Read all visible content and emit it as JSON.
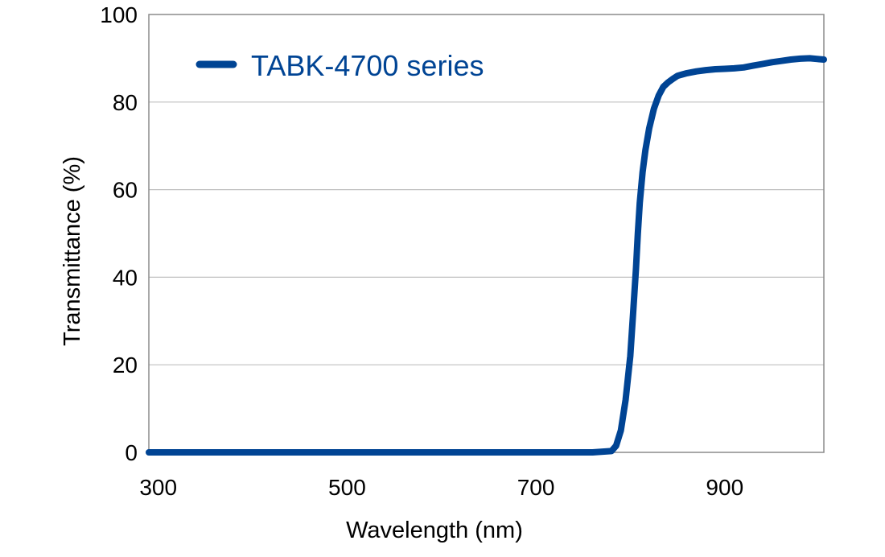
{
  "chart_data": {
    "type": "line",
    "title": "",
    "xlabel": "Wavelength (nm)",
    "ylabel": "Transmittance (%)",
    "xlim": [
      290,
      1005
    ],
    "ylim": [
      0,
      100
    ],
    "x_ticks": [
      300,
      500,
      700,
      900
    ],
    "y_ticks": [
      0,
      20,
      40,
      60,
      80,
      100
    ],
    "grid": "horizontal",
    "legend_position": "top-left",
    "series": [
      {
        "name": "TABK-4700 series",
        "color": "#004494",
        "x": [
          290,
          300,
          400,
          500,
          600,
          700,
          760,
          780,
          785,
          790,
          795,
          800,
          803,
          806,
          808,
          810,
          813,
          816,
          820,
          825,
          830,
          835,
          840,
          845,
          850,
          855,
          860,
          870,
          880,
          890,
          900,
          910,
          920,
          930,
          940,
          950,
          960,
          970,
          980,
          990,
          1000,
          1005
        ],
        "values": [
          0,
          0,
          0,
          0,
          0,
          0,
          0,
          0.3,
          1.5,
          5,
          12,
          22,
          32,
          42,
          50,
          57,
          64,
          69,
          74,
          78.5,
          81.5,
          83.5,
          84.5,
          85.3,
          86,
          86.3,
          86.6,
          87,
          87.3,
          87.5,
          87.6,
          87.7,
          87.9,
          88.3,
          88.7,
          89.1,
          89.4,
          89.7,
          89.9,
          90,
          89.8,
          89.7
        ]
      }
    ]
  }
}
